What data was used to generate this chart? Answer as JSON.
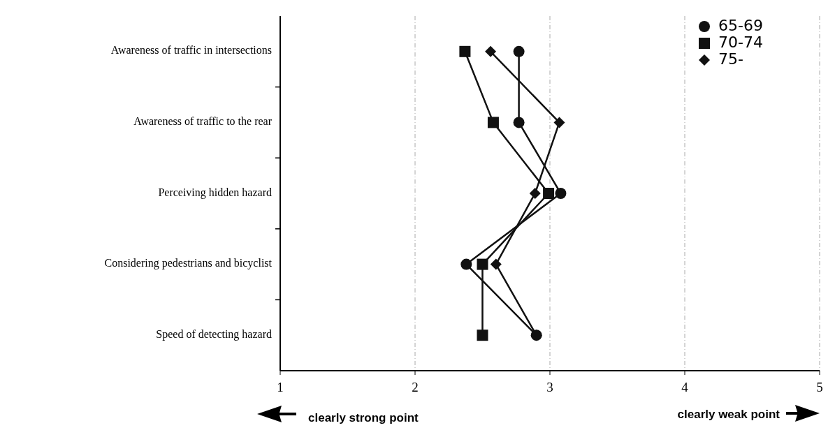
{
  "chart_data": {
    "type": "line",
    "orientation": "horizontal",
    "categories": [
      "Awareness of traffic in intersections",
      "Awareness of traffic to the rear",
      "Perceiving hidden hazard",
      "Considering pedestrians and bicyclist",
      "Speed of detecting hazard"
    ],
    "series": [
      {
        "name": "75-",
        "color": "#111111",
        "marker": "diamond",
        "values": [
          2.56,
          3.07,
          2.89,
          2.6,
          2.9
        ]
      },
      {
        "name": "70-74",
        "color": "#111111",
        "marker": "square",
        "values": [
          2.37,
          2.58,
          2.99,
          2.5,
          2.5
        ]
      },
      {
        "name": "65-69",
        "color": "#111111",
        "marker": "circle",
        "values": [
          2.77,
          2.77,
          3.08,
          2.38,
          2.9
        ]
      }
    ],
    "xlim": [
      1,
      5
    ],
    "xticks": [
      1,
      2,
      3,
      4,
      5
    ],
    "grid": "x",
    "legend": "top right",
    "line_style": "solid",
    "annotations": [
      "clearly strong point",
      "clearly weak point"
    ]
  }
}
